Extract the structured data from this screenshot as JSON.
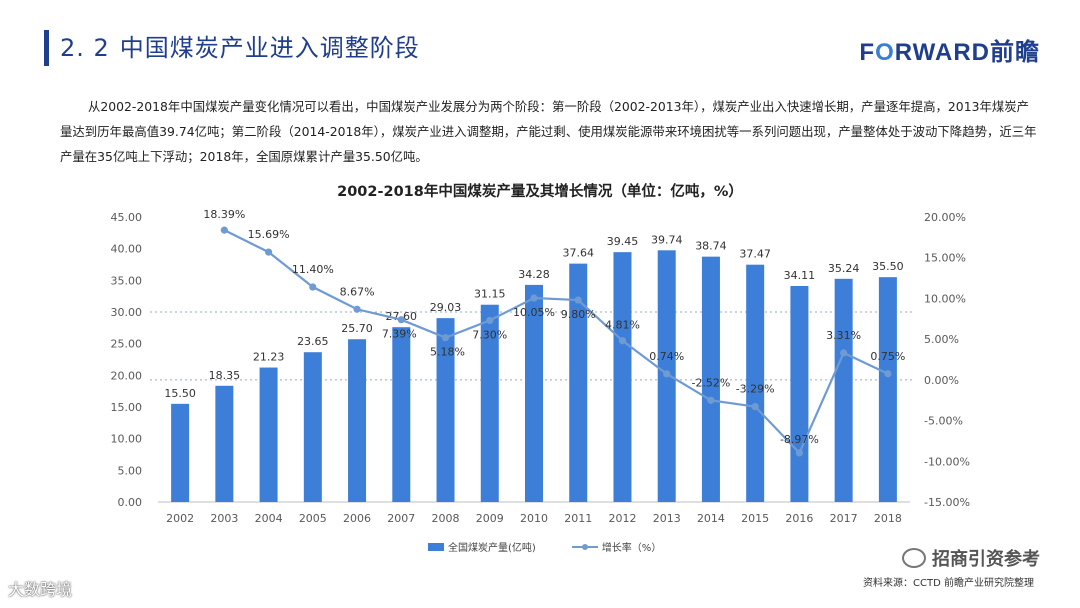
{
  "header": {
    "section_number": "2. 2",
    "title": "中国煤炭产业进入调整阶段",
    "logo_text_pre": "F",
    "logo_text_o": "O",
    "logo_text_post": "RWARD前瞻"
  },
  "intro": "从2002-2018年中国煤炭产量变化情况可以看出，中国煤炭产业发展分为两个阶段：第一阶段（2002-2013年），煤炭产业出入快速增长期，产量逐年提高，2013年煤炭产量达到历年最高值39.74亿吨；第二阶段（2014-2018年），煤炭产业进入调整期，产能过剩、使用煤炭能源带来环境困扰等一系列问题出现，产量整体处于波动下降趋势，近三年产量在35亿吨上下浮动；2018年，全国原煤累计产量35.50亿吨。",
  "chart_data": {
    "type": "bar+line",
    "title": "2002-2018年中国煤炭产量及其增长情况（单位：亿吨，%）",
    "categories": [
      "2002",
      "2003",
      "2004",
      "2005",
      "2006",
      "2007",
      "2008",
      "2009",
      "2010",
      "2011",
      "2012",
      "2013",
      "2014",
      "2015",
      "2016",
      "2017",
      "2018"
    ],
    "series": [
      {
        "name": "全国煤炭产量(亿吨)",
        "type": "bar",
        "axis": "left",
        "values": [
          15.5,
          18.35,
          21.23,
          23.65,
          25.7,
          27.6,
          29.03,
          31.15,
          34.28,
          37.64,
          39.45,
          39.74,
          38.74,
          37.47,
          34.11,
          35.24,
          35.5
        ],
        "labels": [
          "15.50",
          "18.35",
          "21.23",
          "23.65",
          "25.70",
          "27.60",
          "29.03",
          "31.15",
          "34.28",
          "37.64",
          "39.45",
          "39.74",
          "38.74",
          "37.47",
          "34.11",
          "35.24",
          "35.50"
        ]
      },
      {
        "name": "增长率（%）",
        "type": "line",
        "axis": "right",
        "values": [
          null,
          18.39,
          15.69,
          11.4,
          8.67,
          7.39,
          5.18,
          7.3,
          10.05,
          9.8,
          4.81,
          0.74,
          -2.52,
          -3.29,
          -8.97,
          3.31,
          0.75
        ],
        "labels": [
          "",
          "18.39%",
          "15.69%",
          "11.40%",
          "8.67%",
          "7.39%",
          "5.18%",
          "7.30%",
          "10.05%",
          "9.80%",
          "4.81%",
          "0.74%",
          "-2.52%",
          "-3.29%",
          "-8.97%",
          "3.31%",
          "0.75%"
        ]
      }
    ],
    "left_axis": {
      "min": 0,
      "max": 45,
      "step": 5,
      "ticks": [
        "0.00",
        "5.00",
        "10.00",
        "15.00",
        "20.00",
        "25.00",
        "30.00",
        "35.00",
        "40.00",
        "45.00"
      ]
    },
    "right_axis": {
      "min": -15,
      "max": 20,
      "step": 5,
      "ticks": [
        "-15.00%",
        "-10.00%",
        "-5.00%",
        "0.00%",
        "5.00%",
        "10.00%",
        "15.00%",
        "20.00%"
      ]
    },
    "reference_lines": [
      {
        "axis": "left",
        "value": 30
      },
      {
        "axis": "right",
        "value": 0
      }
    ],
    "colors": {
      "bar": "#3d7fd8",
      "line": "#6f9bd2",
      "axis_text": "#595959",
      "label_text": "#333333"
    }
  },
  "legend": {
    "bar_label": "全国煤炭产量(亿吨)",
    "line_label": "增长率（%）"
  },
  "source": "资料来源：CCTD 前瞻产业研究院整理",
  "watermarks": {
    "bottom_right": "招商引资参考",
    "bottom_left": "大数跨境"
  }
}
